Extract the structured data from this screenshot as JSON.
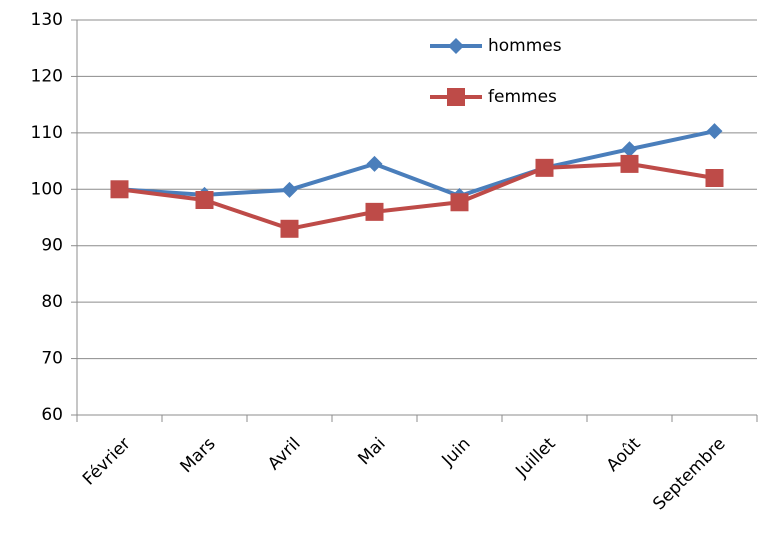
{
  "chart_data": {
    "type": "line",
    "categories": [
      "Février",
      "Mars",
      "Avril",
      "Mai",
      "Juin",
      "Juillet",
      "Août",
      "Septembre"
    ],
    "series": [
      {
        "name": "hommes",
        "color": "#4a7ebb",
        "marker": "diamond",
        "values": [
          100,
          99,
          99.9,
          104.5,
          98.8,
          103.8,
          107.1,
          110.3
        ]
      },
      {
        "name": "femmes",
        "color": "#be4b48",
        "marker": "square",
        "values": [
          100,
          98.1,
          93,
          96,
          97.7,
          103.8,
          104.5,
          102
        ]
      }
    ],
    "ylim": [
      60,
      130
    ],
    "yticks": [
      60,
      70,
      80,
      90,
      100,
      110,
      120,
      130
    ],
    "grid": true,
    "legend": "top-right"
  }
}
